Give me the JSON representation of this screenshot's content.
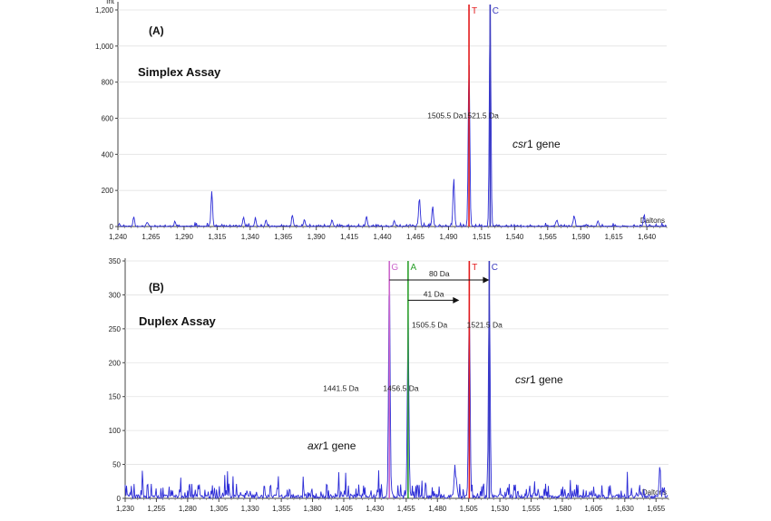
{
  "chart_data": [
    {
      "type": "line",
      "panel_label": "(A)",
      "assay_label": "Simplex Assay",
      "gene_label": {
        "italic": "csr",
        "rest": "1 gene"
      },
      "y_unit": "Int",
      "x_unit": "Daltons",
      "xlim": [
        1240,
        1655
      ],
      "ylim": [
        0,
        1230
      ],
      "yticks": [
        "0",
        "200",
        "400",
        "600",
        "800",
        "1,000",
        "1,200"
      ],
      "ytick_values": [
        0,
        200,
        400,
        600,
        800,
        1000,
        1200
      ],
      "xticks": [
        "1,240",
        "1,265",
        "1,290",
        "1,315",
        "1,340",
        "1,365",
        "1,390",
        "1,415",
        "1,440",
        "1,465",
        "1,490",
        "1,515",
        "1,540",
        "1,565",
        "1,590",
        "1,615",
        "1,640"
      ],
      "xtick_values": [
        1240,
        1265,
        1290,
        1315,
        1340,
        1365,
        1390,
        1415,
        1440,
        1465,
        1490,
        1515,
        1540,
        1565,
        1590,
        1615,
        1640
      ],
      "noise_level": 12,
      "peaks": [
        {
          "x": 1252,
          "y": 45
        },
        {
          "x": 1262,
          "y": 20
        },
        {
          "x": 1283,
          "y": 18
        },
        {
          "x": 1311,
          "y": 195
        },
        {
          "x": 1335,
          "y": 50
        },
        {
          "x": 1344,
          "y": 40
        },
        {
          "x": 1352,
          "y": 35
        },
        {
          "x": 1372,
          "y": 60
        },
        {
          "x": 1381,
          "y": 38
        },
        {
          "x": 1402,
          "y": 35
        },
        {
          "x": 1428,
          "y": 55
        },
        {
          "x": 1449,
          "y": 30
        },
        {
          "x": 1468,
          "y": 155
        },
        {
          "x": 1478,
          "y": 110
        },
        {
          "x": 1494,
          "y": 265
        },
        {
          "x": 1505.5,
          "y": 920
        },
        {
          "x": 1521.5,
          "y": 1220
        },
        {
          "x": 1572,
          "y": 35
        },
        {
          "x": 1585,
          "y": 60
        },
        {
          "x": 1603,
          "y": 30
        },
        {
          "x": 1638,
          "y": 65
        }
      ],
      "markers": [
        {
          "label": "T",
          "x": 1505.5,
          "color": "#e31a1c"
        },
        {
          "label": "C",
          "x": 1521.5,
          "color": "#3b3bbf"
        }
      ],
      "annotations": [
        {
          "text": "1505.5 Da",
          "x": 1501,
          "y": 600
        },
        {
          "text": "1521.5 Da",
          "x": 1528,
          "y": 600
        }
      ]
    },
    {
      "type": "line",
      "panel_label": "(B)",
      "assay_label": "Duplex Assay",
      "gene_label": {
        "italic": "csr",
        "rest": "1 gene"
      },
      "gene_label_2": {
        "italic": "axr",
        "rest": "1 gene"
      },
      "x_unit": "Daltons",
      "xlim": [
        1230,
        1665
      ],
      "ylim": [
        0,
        350
      ],
      "yticks": [
        "0",
        "50",
        "100",
        "150",
        "200",
        "250",
        "300",
        "350"
      ],
      "ytick_values": [
        0,
        50,
        100,
        150,
        200,
        250,
        300,
        350
      ],
      "xticks": [
        "1,230",
        "1,255",
        "1,280",
        "1,305",
        "1,330",
        "1,355",
        "1,380",
        "1,405",
        "1,430",
        "1,455",
        "1,480",
        "1,505",
        "1,530",
        "1,555",
        "1,580",
        "1,605",
        "1,630",
        "1,655"
      ],
      "xtick_values": [
        1230,
        1255,
        1280,
        1305,
        1330,
        1355,
        1380,
        1405,
        1430,
        1455,
        1480,
        1505,
        1530,
        1555,
        1580,
        1605,
        1630,
        1655
      ],
      "noise_level": 22,
      "peaks": [
        {
          "x": 1441.5,
          "y": 330
        },
        {
          "x": 1456.5,
          "y": 250
        },
        {
          "x": 1494,
          "y": 45
        },
        {
          "x": 1505.5,
          "y": 290
        },
        {
          "x": 1521.5,
          "y": 315
        },
        {
          "x": 1658,
          "y": 35
        }
      ],
      "markers": [
        {
          "label": "G",
          "x": 1441.5,
          "color": "#cc66cc"
        },
        {
          "label": "A",
          "x": 1456.5,
          "color": "#2ca02c"
        },
        {
          "label": "T",
          "x": 1505.5,
          "color": "#e31a1c"
        },
        {
          "label": "C",
          "x": 1521.5,
          "color": "#3b3bbf"
        }
      ],
      "arrows": [
        {
          "text": "80 Da",
          "x1": 1441.5,
          "x2": 1521.5,
          "y": 322
        },
        {
          "text": "41 Da",
          "x1": 1456.5,
          "x2": 1497.5,
          "y": 292
        }
      ],
      "annotations": [
        {
          "text": "1505.5 Da",
          "x": 1488,
          "y": 252
        },
        {
          "text": "1521.5 Da",
          "x": 1532,
          "y": 252
        },
        {
          "text": "1441.5 Da",
          "x": 1417,
          "y": 158
        },
        {
          "text": "1456.5 Da",
          "x": 1465,
          "y": 158
        }
      ]
    }
  ]
}
